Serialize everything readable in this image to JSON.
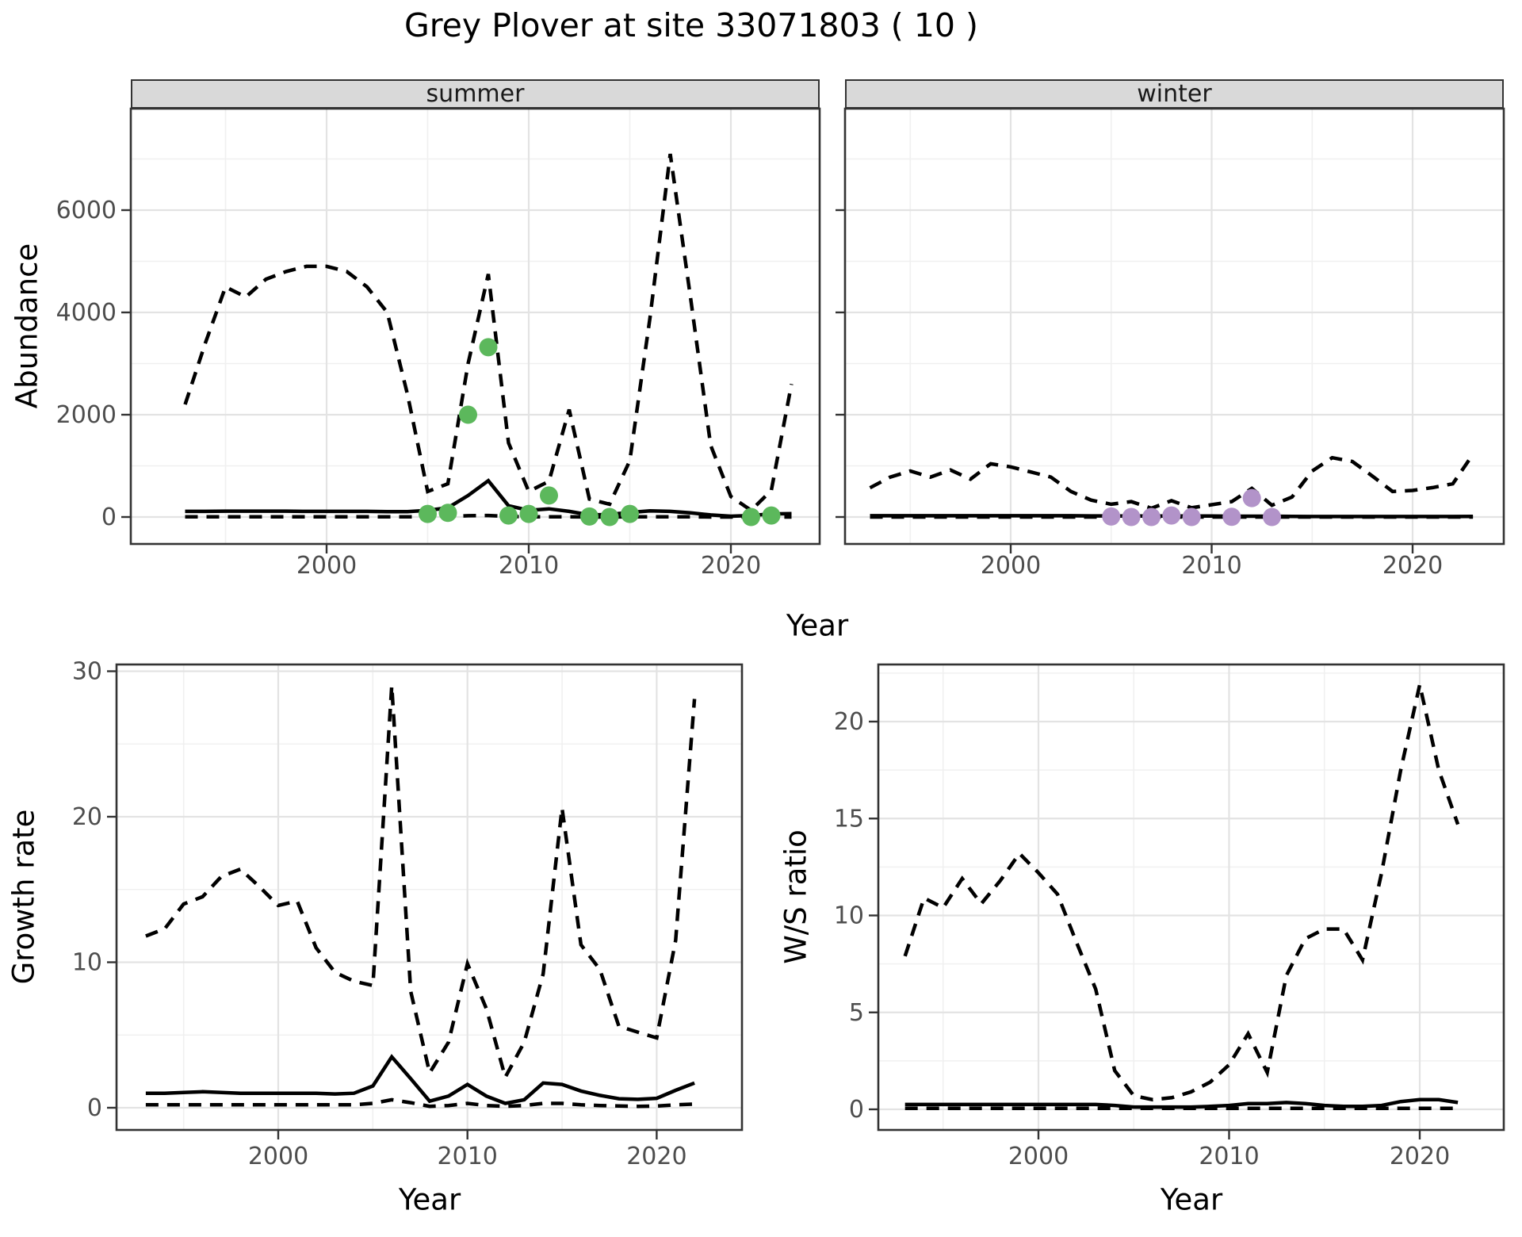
{
  "title": "Grey Plover at site 33071803 ( 10 )",
  "axis_labels": {
    "abundance": "Abundance",
    "growth": "Growth rate",
    "ws": "W/S ratio",
    "year": "Year"
  },
  "facets": {
    "summer": "summer",
    "winter": "winter"
  },
  "colors": {
    "summer_points": "#5cb85c",
    "winter_points": "#b293c9",
    "line": "#000000",
    "panel_border": "#333333",
    "strip_bg": "#d9d9d9",
    "grid_major": "#e3e3e3",
    "grid_minor": "#f0f0f0",
    "axis_text": "#4d4d4d",
    "tick_mark": "#333333"
  },
  "chart_data": [
    {
      "type": "line",
      "facet": "summer",
      "xlabel": "Year",
      "ylabel": "Abundance",
      "xlim": [
        1990.3,
        2024.4
      ],
      "ylim": [
        -530,
        7980
      ],
      "x_ticks": [
        "2000",
        "2010",
        "2020"
      ],
      "y_ticks": [
        "0",
        "2000",
        "4000",
        "6000"
      ],
      "show_y_tick_labels": true,
      "x": [
        1993,
        1994,
        1995,
        1996,
        1997,
        1998,
        1999,
        2000,
        2001,
        2002,
        2003,
        2004,
        2005,
        2006,
        2007,
        2008,
        2009,
        2010,
        2011,
        2012,
        2013,
        2014,
        2015,
        2016,
        2017,
        2018,
        2019,
        2020,
        2021,
        2022,
        2023
      ],
      "series": [
        {
          "name": "upper_ci",
          "style": "dashed",
          "values": [
            2200,
            3400,
            4500,
            4300,
            4650,
            4800,
            4900,
            4900,
            4800,
            4500,
            4000,
            2400,
            500,
            650,
            3000,
            4750,
            1450,
            500,
            700,
            2100,
            350,
            250,
            1100,
            3900,
            7100,
            4300,
            1400,
            400,
            130,
            520,
            2600
          ]
        },
        {
          "name": "estimate",
          "style": "solid",
          "values": [
            110,
            110,
            115,
            115,
            115,
            115,
            110,
            110,
            110,
            110,
            105,
            105,
            130,
            180,
            420,
            710,
            220,
            130,
            160,
            110,
            40,
            50,
            90,
            120,
            110,
            80,
            40,
            15,
            30,
            60,
            65
          ]
        },
        {
          "name": "lower_ci",
          "style": "dashed",
          "values": [
            5,
            5,
            5,
            5,
            5,
            5,
            5,
            5,
            5,
            5,
            5,
            5,
            5,
            10,
            25,
            30,
            10,
            5,
            5,
            5,
            0,
            0,
            5,
            5,
            5,
            5,
            0,
            0,
            0,
            0,
            0
          ]
        }
      ],
      "points": {
        "name": "observed-counts-summer",
        "color_key": "summer_points",
        "x": [
          2005,
          2006,
          2007,
          2008,
          2009,
          2010,
          2011,
          2013,
          2014,
          2015,
          2021,
          2022
        ],
        "y": [
          60,
          80,
          2000,
          3320,
          30,
          60,
          420,
          10,
          0,
          60,
          0,
          30
        ]
      }
    },
    {
      "type": "line",
      "facet": "winter",
      "xlabel": "Year",
      "ylabel": "Abundance",
      "xlim": [
        1991.7,
        2024.5
      ],
      "ylim": [
        -530,
        7980
      ],
      "x_ticks": [
        "2000",
        "2010",
        "2020"
      ],
      "y_ticks": [
        "0",
        "2000",
        "4000",
        "6000"
      ],
      "show_y_tick_labels": false,
      "x": [
        1993,
        1994,
        1995,
        1996,
        1997,
        1998,
        1999,
        2000,
        2001,
        2002,
        2003,
        2004,
        2005,
        2006,
        2007,
        2008,
        2009,
        2010,
        2011,
        2012,
        2013,
        2014,
        2015,
        2016,
        2017,
        2018,
        2019,
        2020,
        2021,
        2022,
        2023
      ],
      "series": [
        {
          "name": "upper_ci",
          "style": "dashed",
          "values": [
            570,
            780,
            900,
            780,
            920,
            740,
            1040,
            980,
            880,
            780,
            500,
            330,
            250,
            300,
            170,
            320,
            180,
            240,
            300,
            560,
            230,
            390,
            900,
            1160,
            1085,
            800,
            500,
            520,
            575,
            650,
            1225
          ]
        },
        {
          "name": "estimate",
          "style": "solid",
          "values": [
            25,
            25,
            25,
            25,
            25,
            25,
            25,
            25,
            25,
            25,
            25,
            22,
            20,
            20,
            20,
            20,
            20,
            18,
            15,
            15,
            15,
            12,
            10,
            10,
            10,
            10,
            10,
            10,
            10,
            10,
            12
          ]
        },
        {
          "name": "lower_ci",
          "style": "dashed",
          "values": [
            0,
            0,
            0,
            0,
            0,
            0,
            0,
            0,
            0,
            0,
            0,
            0,
            0,
            0,
            0,
            0,
            0,
            0,
            0,
            0,
            0,
            0,
            0,
            0,
            0,
            0,
            0,
            0,
            0,
            0,
            0
          ]
        }
      ],
      "points": {
        "name": "observed-counts-winter",
        "color_key": "winter_points",
        "x": [
          2005,
          2006,
          2007,
          2008,
          2009,
          2011,
          2012,
          2013
        ],
        "y": [
          10,
          0,
          0,
          30,
          0,
          5,
          370,
          0
        ]
      }
    },
    {
      "type": "line",
      "facet": null,
      "xlabel": "Year",
      "ylabel": "Growth rate",
      "xlim": [
        1991.4,
        2024.5
      ],
      "ylim": [
        -1.5,
        30.5
      ],
      "x_ticks": [
        "2000",
        "2010",
        "2020"
      ],
      "y_ticks": [
        "0",
        "10",
        "20",
        "30"
      ],
      "show_y_tick_labels": true,
      "x": [
        1993,
        1994,
        1995,
        1996,
        1997,
        1998,
        1999,
        2000,
        2001,
        2002,
        2003,
        2004,
        2005,
        2006,
        2007,
        2008,
        2009,
        2010,
        2011,
        2012,
        2013,
        2014,
        2015,
        2016,
        2017,
        2018,
        2019,
        2020,
        2021,
        2022
      ],
      "series": [
        {
          "name": "upper_ci",
          "style": "dashed",
          "values": [
            11.8,
            12.3,
            14.0,
            14.5,
            15.9,
            16.4,
            15.2,
            13.9,
            14.2,
            11.0,
            9.3,
            8.7,
            8.4,
            29.0,
            8.0,
            2.4,
            4.5,
            9.9,
            6.8,
            2.1,
            4.5,
            9.2,
            20.6,
            11.2,
            9.5,
            5.6,
            5.2,
            4.8,
            11.5,
            28.1
          ]
        },
        {
          "name": "estimate",
          "style": "solid",
          "values": [
            1.0,
            1.0,
            1.05,
            1.1,
            1.05,
            1.0,
            1.0,
            1.0,
            1.0,
            1.0,
            0.95,
            1.0,
            1.5,
            3.5,
            2.0,
            0.45,
            0.8,
            1.6,
            0.8,
            0.3,
            0.55,
            1.7,
            1.6,
            1.15,
            0.85,
            0.62,
            0.58,
            0.65,
            1.2,
            1.7
          ]
        },
        {
          "name": "lower_ci",
          "style": "dashed",
          "values": [
            0.2,
            0.2,
            0.2,
            0.2,
            0.2,
            0.2,
            0.2,
            0.2,
            0.2,
            0.2,
            0.2,
            0.2,
            0.3,
            0.55,
            0.35,
            0.1,
            0.15,
            0.3,
            0.15,
            0.1,
            0.15,
            0.3,
            0.3,
            0.2,
            0.15,
            0.12,
            0.1,
            0.12,
            0.2,
            0.25
          ]
        }
      ],
      "points": null
    },
    {
      "type": "line",
      "facet": null,
      "xlabel": "Year",
      "ylabel": "W/S ratio",
      "xlim": [
        1991.6,
        2024.4
      ],
      "ylim": [
        -1.05,
        22.9
      ],
      "x_ticks": [
        "2000",
        "2010",
        "2020"
      ],
      "y_ticks": [
        "0",
        "5",
        "10",
        "15",
        "20"
      ],
      "show_y_tick_labels": true,
      "x": [
        1993,
        1994,
        1995,
        1996,
        1997,
        1998,
        1999,
        2000,
        2001,
        2002,
        2003,
        2004,
        2005,
        2006,
        2007,
        2008,
        2009,
        2010,
        2011,
        2012,
        2013,
        2014,
        2015,
        2016,
        2017,
        2018,
        2019,
        2020,
        2021,
        2022
      ],
      "series": [
        {
          "name": "upper_ci",
          "style": "dashed",
          "values": [
            7.9,
            10.9,
            10.4,
            11.9,
            10.6,
            11.8,
            13.2,
            12.2,
            11.1,
            8.6,
            6.2,
            2.0,
            0.7,
            0.5,
            0.6,
            0.9,
            1.4,
            2.3,
            3.9,
            1.9,
            6.9,
            8.8,
            9.3,
            9.3,
            7.7,
            12.2,
            17.5,
            21.9,
            17.5,
            14.7
          ]
        },
        {
          "name": "estimate",
          "style": "solid",
          "values": [
            0.25,
            0.25,
            0.25,
            0.25,
            0.25,
            0.25,
            0.25,
            0.25,
            0.25,
            0.25,
            0.25,
            0.2,
            0.12,
            0.12,
            0.12,
            0.12,
            0.15,
            0.2,
            0.3,
            0.3,
            0.35,
            0.3,
            0.2,
            0.15,
            0.15,
            0.2,
            0.4,
            0.5,
            0.5,
            0.35
          ]
        },
        {
          "name": "lower_ci",
          "style": "dashed",
          "values": [
            0.05,
            0.05,
            0.05,
            0.05,
            0.05,
            0.05,
            0.05,
            0.05,
            0.05,
            0.05,
            0.05,
            0.05,
            0.05,
            0.05,
            0.05,
            0.05,
            0.05,
            0.05,
            0.05,
            0.05,
            0.05,
            0.05,
            0.05,
            0.05,
            0.05,
            0.05,
            0.05,
            0.05,
            0.05,
            0.05
          ]
        }
      ],
      "points": null
    }
  ]
}
